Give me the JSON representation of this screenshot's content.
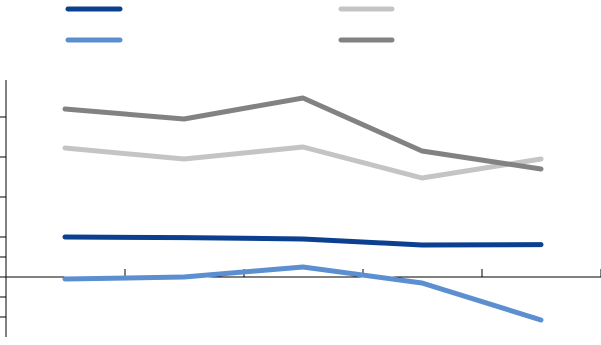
{
  "chart_data": {
    "type": "line",
    "title": "",
    "xlabel": "",
    "ylabel": "",
    "x": [
      1,
      2,
      3,
      4,
      5
    ],
    "ylim": [
      -3,
      9
    ],
    "grid": false,
    "legend_placement": "top",
    "series": [
      {
        "color": "#0b3f8f",
        "values": [
          2.0,
          1.97,
          1.9,
          1.6,
          1.62
        ]
      },
      {
        "color": "#5b8fd0",
        "values": [
          -0.1,
          0.0,
          0.5,
          -0.3,
          -2.15
        ]
      },
      {
        "color": "#c4c4c4",
        "values": [
          6.45,
          5.9,
          6.5,
          4.95,
          5.9
        ]
      },
      {
        "color": "#828282",
        "values": [
          8.4,
          7.9,
          8.95,
          6.3,
          5.4
        ]
      }
    ]
  }
}
